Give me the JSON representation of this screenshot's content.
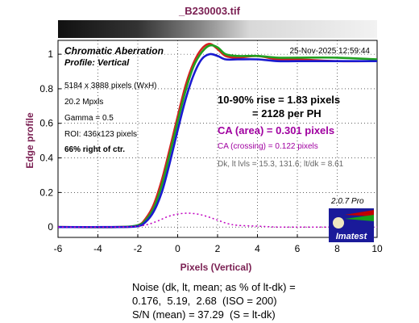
{
  "title": "_B230003.tif",
  "plot": {
    "heading": "Chromatic Aberration",
    "profile": "Profile: Vertical",
    "date": "25-Nov-2025 12:59:44",
    "info": [
      "5184 x 3888 pixels (WxH)",
      "20.2 Mpxls",
      "Gamma = 0.5",
      "ROI: 436x123 pixels",
      "66% right of ctr."
    ],
    "rise_line1": "10-90% rise = 1.83 pixels",
    "rise_line2": "= 2128 per PH",
    "ca_area": "CA (area) = 0.301 pixels",
    "ca_crossing": "CA (crossing) = 0.122 pixels",
    "levels": "Dk, lt lvls = 15.3, 131.6;  lt/dk = 8.61",
    "version": "2.0.7  Pro",
    "logo_text": "Imatest"
  },
  "noise": {
    "line1": "Noise (dk, lt, mean; as % of lt-dk) =",
    "line2": "0.176,  5.19,  2.68  (ISO = 200)",
    "line3": "S/N (mean) = 37.29  (S = lt-dk)"
  },
  "colors": {
    "title": "#7a1f52",
    "red": "#d42020",
    "green": "#20a020",
    "blue": "#1a1ad0",
    "ca_fill": "#c000c0",
    "logo_bg": "#1a1a9a"
  },
  "chart_data": {
    "type": "line",
    "xlabel": "Pixels (Vertical)",
    "ylabel": "Edge profile",
    "xlim": [
      -6,
      10
    ],
    "ylim": [
      -0.06,
      1.08
    ],
    "xticks": [
      -6,
      -4,
      -2,
      0,
      2,
      4,
      6,
      8,
      10
    ],
    "yticks": [
      0,
      0.2,
      0.4,
      0.6,
      0.8,
      1
    ],
    "grid": true,
    "series": [
      {
        "color": "red",
        "x": [
          -6,
          -3,
          -2,
          -1.6,
          -1.2,
          -0.8,
          -0.4,
          0,
          0.4,
          0.8,
          1.2,
          1.6,
          2.0,
          2.4,
          3,
          4,
          5,
          6,
          8,
          10
        ],
        "y": [
          0,
          0,
          0.01,
          0.05,
          0.13,
          0.27,
          0.45,
          0.64,
          0.82,
          0.95,
          1.03,
          1.06,
          1.03,
          0.99,
          0.98,
          0.99,
          0.97,
          0.97,
          0.96,
          0.96
        ]
      },
      {
        "color": "green",
        "x": [
          -6,
          -3,
          -2,
          -1.6,
          -1.2,
          -0.8,
          -0.4,
          0,
          0.4,
          0.8,
          1.2,
          1.6,
          2.0,
          2.4,
          3,
          4,
          5,
          6,
          8,
          10
        ],
        "y": [
          0,
          0,
          0.01,
          0.04,
          0.11,
          0.24,
          0.42,
          0.61,
          0.79,
          0.93,
          1.01,
          1.05,
          1.04,
          1.0,
          0.99,
          0.99,
          0.98,
          0.98,
          0.98,
          0.97
        ]
      },
      {
        "color": "blue",
        "x": [
          -6,
          -3,
          -2,
          -1.6,
          -1.2,
          -0.8,
          -0.4,
          0,
          0.4,
          0.8,
          1.2,
          1.6,
          2.0,
          2.4,
          3,
          4,
          5,
          6,
          8,
          10
        ],
        "y": [
          0,
          0,
          0.005,
          0.03,
          0.09,
          0.2,
          0.37,
          0.56,
          0.74,
          0.88,
          0.97,
          1.0,
          0.99,
          0.97,
          0.97,
          0.97,
          0.96,
          0.96,
          0.96,
          0.96
        ]
      },
      {
        "color": "ca_fill",
        "dotted": true,
        "x": [
          -6,
          -3,
          -2,
          -1.5,
          -1,
          -0.5,
          0,
          0.5,
          1,
          1.5,
          2,
          2.5,
          3,
          4,
          5,
          6,
          8,
          10
        ],
        "y": [
          0,
          0,
          0.005,
          0.015,
          0.035,
          0.06,
          0.075,
          0.08,
          0.075,
          0.06,
          0.04,
          0.02,
          0.01,
          0.005,
          0,
          0,
          0,
          0
        ]
      }
    ]
  }
}
